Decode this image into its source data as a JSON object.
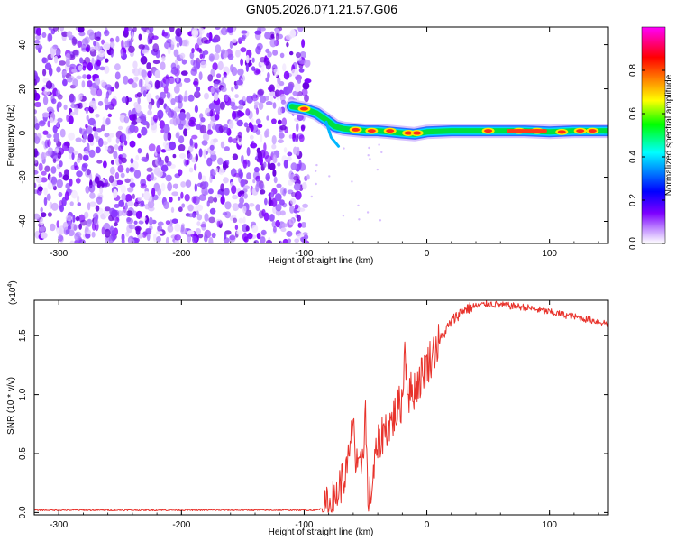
{
  "title": "GN05.2026.071.21.57.G06",
  "colors": {
    "snr_line": "#e8322b",
    "frame": "#000000",
    "background": "#ffffff"
  },
  "chart_data": [
    {
      "type": "heatmap",
      "name": "spectrogram",
      "title": "GN05.2026.071.21.57.G06",
      "xlabel": "Height of straight line (km)",
      "ylabel": "Frequency (Hz)",
      "xlim": [
        -320,
        148
      ],
      "ylim": [
        -50,
        48
      ],
      "x_ticks": [
        -300,
        -200,
        -100,
        0,
        100
      ],
      "x_tick_labels": [
        "-300",
        "-200",
        "-100",
        "0",
        "100"
      ],
      "y_ticks": [
        -40,
        -20,
        0,
        20,
        40
      ],
      "y_tick_labels": [
        "-40",
        "-20",
        "0",
        "20",
        "40"
      ],
      "noise_region_x": [
        -320,
        -95
      ],
      "signal_ridge": {
        "x": [
          -110,
          -100,
          -90,
          -82,
          -75,
          -68,
          -60,
          -50,
          -40,
          -30,
          -20,
          -10,
          0,
          20,
          50,
          80,
          100,
          120,
          148
        ],
        "y": [
          12,
          11,
          9,
          6,
          3,
          2,
          1.5,
          1,
          1,
          0.5,
          0,
          -0.5,
          0.5,
          1,
          1,
          1,
          0.5,
          1,
          1
        ]
      },
      "colorbar": {
        "label": "Normalized spectral amplitude",
        "range": [
          0,
          1
        ],
        "ticks": [
          0.0,
          0.2,
          0.4,
          0.6,
          0.8
        ],
        "tick_labels": [
          "0.0",
          "0.2",
          "0.4",
          "0.6",
          "0.8"
        ],
        "colormap": [
          "#ffffff",
          "#7d00ff",
          "#0000ff",
          "#00ffff",
          "#00ff00",
          "#ffff00",
          "#ff8000",
          "#ff0000",
          "#ff00ff"
        ]
      }
    },
    {
      "type": "line",
      "name": "snr",
      "xlabel": "Height of straight line (km)",
      "ylabel": "SNR (10 * v/v)",
      "y_scale_label": "(x10",
      "y_scale_exp": "4",
      "y_scale_suffix": ")",
      "xlim": [
        -320,
        148
      ],
      "ylim": [
        -0.02,
        1.8
      ],
      "x_ticks": [
        -300,
        -200,
        -100,
        0,
        100
      ],
      "x_tick_labels": [
        "-300",
        "-200",
        "-100",
        "0",
        "100"
      ],
      "y_ticks": [
        0.0,
        0.5,
        1.0,
        1.5
      ],
      "y_tick_labels": [
        "0.0",
        "0.5",
        "1.0",
        "1.5"
      ],
      "series": [
        {
          "name": "SNR",
          "x": [
            -320,
            -300,
            -250,
            -200,
            -150,
            -120,
            -100,
            -90,
            -80,
            -75,
            -70,
            -65,
            -62,
            -60,
            -58,
            -55,
            -52,
            -50,
            -48,
            -45,
            -42,
            -40,
            -35,
            -30,
            -25,
            -20,
            -18,
            -15,
            -10,
            -5,
            0,
            5,
            10,
            20,
            30,
            40,
            50,
            60,
            70,
            80,
            90,
            100,
            110,
            120,
            130,
            140,
            148
          ],
          "y": [
            0.02,
            0.02,
            0.02,
            0.02,
            0.02,
            0.02,
            0.02,
            0.02,
            0.05,
            0.12,
            0.25,
            0.35,
            0.55,
            0.88,
            0.4,
            0.3,
            0.55,
            0.85,
            0.1,
            0.2,
            0.45,
            0.55,
            0.7,
            0.75,
            0.85,
            0.95,
            1.42,
            1.0,
            1.05,
            1.15,
            1.25,
            1.35,
            1.45,
            1.62,
            1.72,
            1.75,
            1.77,
            1.76,
            1.75,
            1.74,
            1.72,
            1.7,
            1.68,
            1.66,
            1.64,
            1.62,
            1.6
          ]
        }
      ]
    }
  ]
}
